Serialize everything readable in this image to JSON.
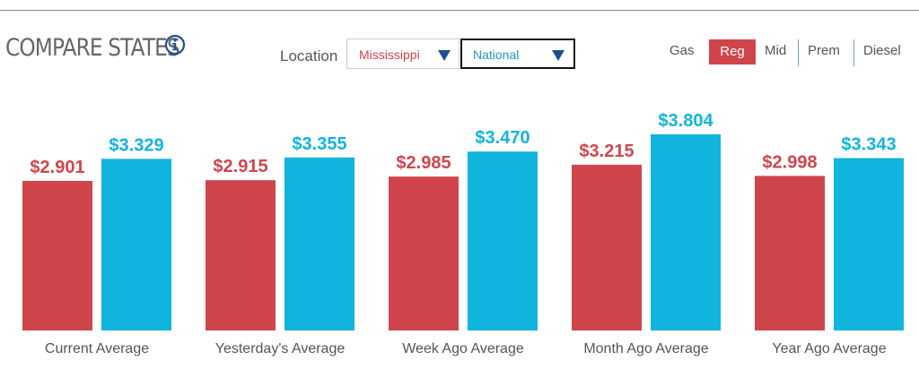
{
  "header": {
    "title": "COMPARE STATES",
    "location_label": "Location",
    "state_select": {
      "value": "Mississippi"
    },
    "compare_select": {
      "value": "National"
    }
  },
  "fuel_types": [
    "Gas",
    "Reg",
    "Mid",
    "Prem",
    "Diesel"
  ],
  "active_fuel": "Reg",
  "icons": {
    "info": "info-icon",
    "dropdown": "triangle-down-icon"
  },
  "colors": {
    "state": "#d0454c",
    "national": "#10b4dc",
    "dropdown_arrow": "#1f4f91"
  },
  "chart_data": {
    "type": "bar",
    "categories": [
      "Current Average",
      "Yesterday's Average",
      "Week Ago Average",
      "Month Ago Average",
      "Year Ago Average"
    ],
    "series": [
      {
        "name": "Mississippi",
        "values": [
          2.901,
          2.915,
          2.985,
          3.215,
          2.998
        ],
        "labels": [
          "$2.901",
          "$2.915",
          "$2.985",
          "$3.215",
          "$2.998"
        ]
      },
      {
        "name": "National",
        "values": [
          3.329,
          3.355,
          3.47,
          3.804,
          3.343
        ],
        "labels": [
          "$3.329",
          "$3.355",
          "$3.470",
          "$3.804",
          "$3.343"
        ]
      }
    ],
    "ylim": [
      0,
      3.804
    ],
    "grid": false
  }
}
